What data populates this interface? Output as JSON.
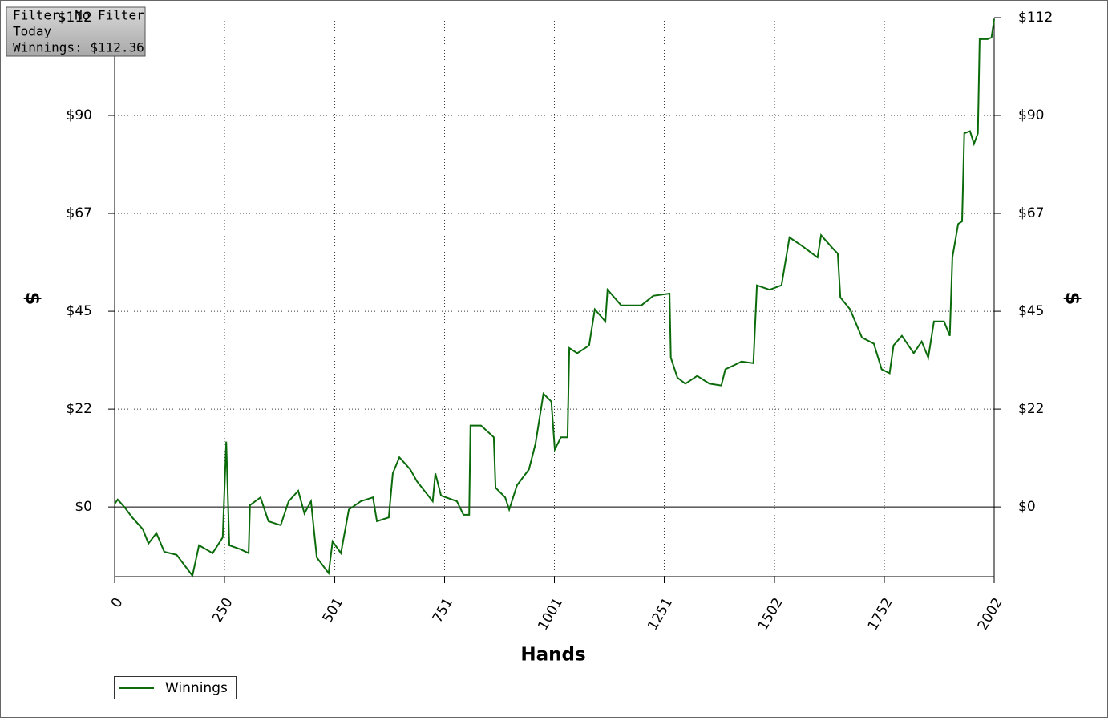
{
  "chart_data": {
    "type": "line",
    "annotations": [
      "Filter: No Filter",
      "Today",
      "Winnings: $112.36"
    ],
    "xlabel": "Hands",
    "ylabel": "$",
    "y2label": "$",
    "xlim": [
      0,
      2002
    ],
    "xticks": [
      0,
      250,
      501,
      751,
      1001,
      1251,
      1502,
      1752,
      2002
    ],
    "ylim": [
      -16,
      112.36
    ],
    "yticks": [
      {
        "value": 0,
        "label": "$0"
      },
      {
        "value": 22.47,
        "label": "$22"
      },
      {
        "value": 44.94,
        "label": "$45"
      },
      {
        "value": 67.42,
        "label": "$67"
      },
      {
        "value": 89.89,
        "label": "$90"
      },
      {
        "value": 112.36,
        "label": "$112"
      }
    ],
    "y2lim": [
      -16,
      112.36
    ],
    "y2ticks": [
      {
        "value": 0,
        "label": "$0"
      },
      {
        "value": 22.47,
        "label": "$22"
      },
      {
        "value": 44.94,
        "label": "$45"
      },
      {
        "value": 67.42,
        "label": "$67"
      },
      {
        "value": 89.89,
        "label": "$90"
      },
      {
        "value": 112.36,
        "label": "$112"
      }
    ],
    "grid": true,
    "legend_position": "bottom-left",
    "series": [
      {
        "name": "Winnings",
        "color": "#0b6b0b",
        "x": [
          0,
          7,
          22,
          40,
          64,
          77,
          95,
          113,
          141,
          177,
          192,
          223,
          246,
          254,
          261,
          286,
          305,
          308,
          332,
          350,
          378,
          396,
          418,
          432,
          447,
          460,
          487,
          496,
          515,
          533,
          560,
          588,
          597,
          624,
          633,
          648,
          673,
          688,
          724,
          730,
          743,
          779,
          794,
          807,
          810,
          834,
          863,
          867,
          889,
          898,
          916,
          943,
          958,
          976,
          994,
          1002,
          1016,
          1031,
          1035,
          1053,
          1080,
          1093,
          1117,
          1122,
          1153,
          1199,
          1226,
          1263,
          1266,
          1281,
          1299,
          1326,
          1354,
          1381,
          1390,
          1409,
          1427,
          1454,
          1462,
          1491,
          1518,
          1536,
          1564,
          1600,
          1608,
          1637,
          1646,
          1652,
          1674,
          1701,
          1728,
          1746,
          1764,
          1773,
          1792,
          1819,
          1837,
          1852,
          1865,
          1888,
          1901,
          1907,
          1920,
          1929,
          1934,
          1947,
          1956,
          1965,
          1969,
          1987,
          1996,
          2002
        ],
        "values": [
          0.7,
          1.7,
          0,
          -2.4,
          -5.1,
          -8.4,
          -6,
          -10.3,
          -11,
          -15.8,
          -8.8,
          -10.6,
          -7,
          15,
          -8.8,
          -9.7,
          -10.6,
          0.4,
          2.2,
          -3.3,
          -4.2,
          1.3,
          3.7,
          -1.5,
          1.3,
          -11.6,
          -15.2,
          -7.9,
          -10.6,
          -0.6,
          1.3,
          2.2,
          -3.3,
          -2.4,
          7.7,
          11.4,
          8.6,
          5.9,
          1.3,
          7.7,
          2.6,
          1.3,
          -1.8,
          -1.8,
          18.7,
          18.7,
          16,
          4.4,
          2.2,
          -0.6,
          5,
          8.6,
          14.5,
          26,
          24.2,
          13.2,
          16,
          16,
          36.5,
          35.3,
          37.1,
          45.4,
          42.6,
          49.9,
          46.3,
          46.3,
          48.5,
          49,
          34.3,
          29.7,
          28.3,
          30.1,
          28.3,
          27.9,
          31.6,
          32.5,
          33.4,
          33,
          50.9,
          49.9,
          50.9,
          61.9,
          60,
          57.3,
          62.4,
          59.1,
          58.2,
          48.1,
          45.4,
          38.9,
          37.5,
          31.6,
          30.7,
          37.1,
          39.3,
          35.3,
          38,
          34.3,
          42.6,
          42.6,
          39.3,
          57.3,
          65,
          65.6,
          85.8,
          86.3,
          83.4,
          85.8,
          107.4,
          107.4,
          107.8,
          112
        ]
      }
    ]
  }
}
